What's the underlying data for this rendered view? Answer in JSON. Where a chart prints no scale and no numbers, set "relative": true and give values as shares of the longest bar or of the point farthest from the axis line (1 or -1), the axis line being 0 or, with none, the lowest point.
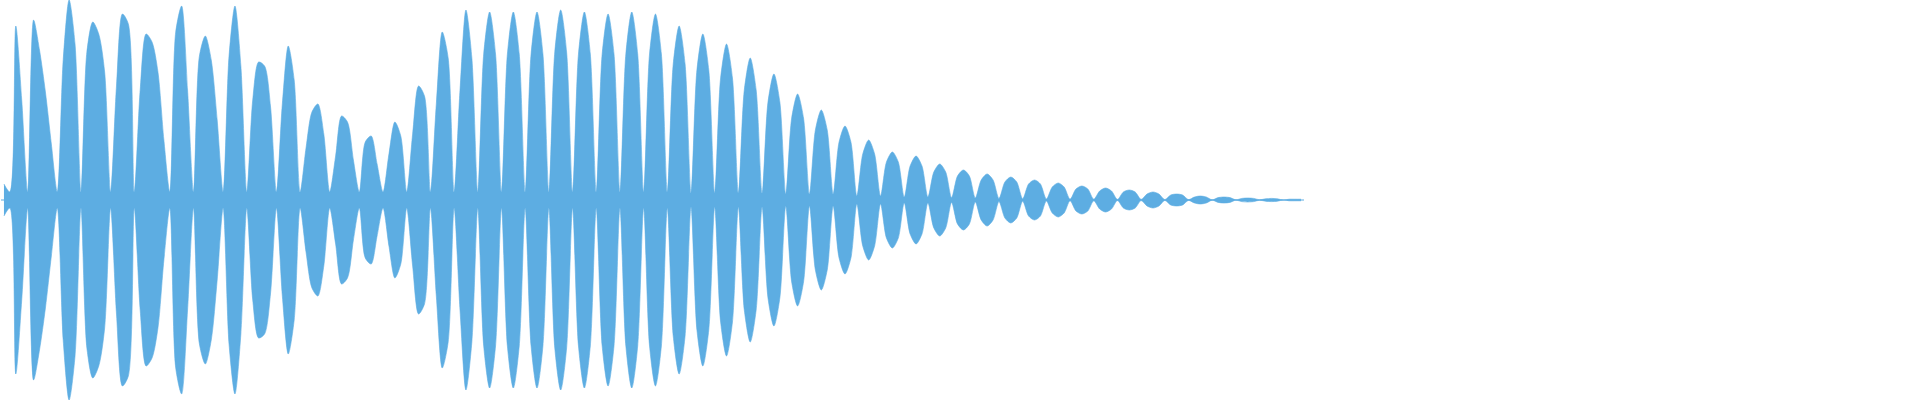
{
  "chart_data": {
    "type": "area",
    "relative": true,
    "categories": [
      null,
      null,
      null,
      null,
      null,
      null,
      null,
      null,
      null,
      null,
      null,
      null,
      null,
      null,
      null,
      null,
      null,
      null,
      null,
      null,
      null,
      null,
      null,
      null,
      null,
      null,
      null,
      null,
      null,
      null,
      null,
      null,
      null,
      null,
      null,
      null,
      null,
      null,
      null,
      null,
      null,
      null,
      null,
      null,
      null,
      null,
      null,
      null,
      null,
      null,
      null,
      null,
      null,
      null,
      null,
      null,
      null,
      null,
      null,
      null,
      null,
      null,
      null,
      null,
      null,
      null,
      null,
      null,
      null,
      null,
      null,
      null,
      null,
      null,
      null,
      null,
      null,
      null,
      null,
      null,
      null,
      null,
      null,
      null,
      null,
      null,
      null,
      null,
      null,
      null,
      null,
      null,
      null,
      null,
      null,
      null,
      null,
      null,
      null,
      null,
      null,
      null,
      null,
      null,
      null,
      null,
      null,
      null,
      null,
      null,
      null,
      null,
      null,
      null,
      null,
      null,
      null,
      null,
      null,
      null,
      null,
      null,
      null,
      null,
      null,
      null,
      null,
      null,
      null,
      null,
      null,
      null,
      null,
      null,
      null,
      null,
      null,
      null,
      null,
      null,
      null,
      null,
      null,
      null,
      null,
      null,
      null,
      null,
      null,
      null,
      null,
      null,
      null,
      null,
      null,
      null,
      null,
      null,
      null,
      null,
      null,
      null,
      null,
      null,
      null,
      null,
      null,
      null,
      null,
      null,
      null,
      null,
      null,
      null,
      null,
      null,
      null,
      null,
      null,
      null,
      null,
      null,
      null,
      null,
      null,
      null,
      null,
      null,
      null,
      null,
      null,
      null,
      null,
      null,
      null,
      null,
      null,
      null,
      null,
      null,
      null,
      null,
      null,
      null,
      null,
      null,
      null,
      null,
      null,
      null,
      null,
      null,
      null,
      null,
      null,
      null,
      null,
      null,
      null,
      null
    ],
    "series": [
      {
        "color": "#5dade2",
        "values": [
          0.08,
          0.04,
          0.87,
          0.5,
          0.04,
          0.9,
          0.75,
          0.54,
          0.28,
          0.04,
          0.7,
          1,
          0.78,
          0.04,
          0.74,
          0.89,
          0.83,
          0.64,
          0.04,
          0.57,
          0.93,
          0.88,
          0.04,
          0.55,
          0.83,
          0.79,
          0.64,
          0.3,
          0.04,
          0.84,
          0.97,
          0.55,
          0.04,
          0.72,
          0.82,
          0.7,
          0.4,
          0.04,
          0.72,
          0.97,
          0.67,
          0.04,
          0.5,
          0.69,
          0.67,
          0.47,
          0.04,
          0.48,
          0.77,
          0.6,
          0.04,
          0.26,
          0.44,
          0.48,
          0.33,
          0.04,
          0.22,
          0.42,
          0.39,
          0.2,
          0.04,
          0.29,
          0.32,
          0.18,
          0.04,
          0.23,
          0.39,
          0.32,
          0.04,
          0.33,
          0.57,
          0.52,
          0.04,
          0.48,
          0.84,
          0.71,
          0.04,
          0.55,
          0.95,
          0.71,
          0.04,
          0.73,
          0.94,
          0.73,
          0.04,
          0.73,
          0.94,
          0.73,
          0.04,
          0.73,
          0.94,
          0.73,
          0.04,
          0.74,
          0.95,
          0.74,
          0.04,
          0.73,
          0.94,
          0.73,
          0.04,
          0.73,
          0.93,
          0.73,
          0.04,
          0.73,
          0.94,
          0.73,
          0.04,
          0.73,
          0.93,
          0.73,
          0.04,
          0.68,
          0.87,
          0.68,
          0.035,
          0.65,
          0.83,
          0.65,
          0.035,
          0.61,
          0.78,
          0.61,
          0.035,
          0.55,
          0.71,
          0.55,
          0.035,
          0.49,
          0.63,
          0.49,
          0.03,
          0.41,
          0.53,
          0.41,
          0.03,
          0.35,
          0.45,
          0.35,
          0.03,
          0.29,
          0.37,
          0.29,
          0.02,
          0.23,
          0.3,
          0.23,
          0.02,
          0.19,
          0.24,
          0.19,
          0.015,
          0.17,
          0.22,
          0.17,
          0.015,
          0.14,
          0.18,
          0.14,
          0.012,
          0.12,
          0.15,
          0.12,
          0.01,
          0.1,
          0.13,
          0.1,
          0.008,
          0.09,
          0.115,
          0.09,
          0.006,
          0.08,
          0.1,
          0.08,
          0.005,
          0.065,
          0.085,
          0.065,
          0.004,
          0.055,
          0.07,
          0.055,
          0.004,
          0.045,
          0.06,
          0.045,
          0.003,
          0.04,
          0.05,
          0.04,
          0.003,
          0.03,
          0.04,
          0.03,
          0.002,
          0.025,
          0.03,
          0.025,
          0.002,
          0.015,
          0.02,
          0.015,
          0.001,
          0.012,
          0.015,
          0.012,
          0.001,
          0.008,
          0.01,
          0.008,
          0.001,
          0.006,
          0.008,
          0.006,
          0,
          0.004,
          0.004,
          0.004
        ]
      },
      {
        "color": "#5dade2",
        "values": [
          -0.08,
          -0.04,
          -0.87,
          -0.5,
          -0.04,
          -0.9,
          -0.75,
          -0.54,
          -0.28,
          -0.04,
          -0.7,
          -1,
          -0.78,
          -0.04,
          -0.74,
          -0.89,
          -0.83,
          -0.64,
          -0.04,
          -0.57,
          -0.93,
          -0.88,
          -0.04,
          -0.55,
          -0.83,
          -0.79,
          -0.64,
          -0.3,
          -0.04,
          -0.84,
          -0.97,
          -0.55,
          -0.04,
          -0.72,
          -0.82,
          -0.7,
          -0.4,
          -0.04,
          -0.72,
          -0.97,
          -0.67,
          -0.04,
          -0.5,
          -0.69,
          -0.67,
          -0.47,
          -0.04,
          -0.48,
          -0.77,
          -0.6,
          -0.04,
          -0.26,
          -0.44,
          -0.48,
          -0.33,
          -0.04,
          -0.22,
          -0.42,
          -0.39,
          -0.2,
          -0.04,
          -0.29,
          -0.32,
          -0.18,
          -0.04,
          -0.23,
          -0.39,
          -0.32,
          -0.04,
          -0.33,
          -0.57,
          -0.52,
          -0.04,
          -0.48,
          -0.84,
          -0.71,
          -0.04,
          -0.55,
          -0.95,
          -0.71,
          -0.04,
          -0.73,
          -0.94,
          -0.73,
          -0.04,
          -0.73,
          -0.94,
          -0.73,
          -0.04,
          -0.73,
          -0.94,
          -0.73,
          -0.04,
          -0.74,
          -0.95,
          -0.74,
          -0.04,
          -0.73,
          -0.94,
          -0.73,
          -0.04,
          -0.73,
          -0.93,
          -0.73,
          -0.04,
          -0.73,
          -0.94,
          -0.73,
          -0.04,
          -0.73,
          -0.93,
          -0.73,
          -0.04,
          -0.68,
          -0.87,
          -0.68,
          -0.035,
          -0.65,
          -0.83,
          -0.65,
          -0.035,
          -0.61,
          -0.78,
          -0.61,
          -0.035,
          -0.55,
          -0.71,
          -0.55,
          -0.035,
          -0.49,
          -0.63,
          -0.49,
          -0.03,
          -0.41,
          -0.53,
          -0.41,
          -0.03,
          -0.35,
          -0.45,
          -0.35,
          -0.03,
          -0.29,
          -0.37,
          -0.29,
          -0.02,
          -0.23,
          -0.3,
          -0.23,
          -0.02,
          -0.19,
          -0.24,
          -0.19,
          -0.015,
          -0.17,
          -0.22,
          -0.17,
          -0.015,
          -0.14,
          -0.18,
          -0.14,
          -0.012,
          -0.12,
          -0.15,
          -0.12,
          -0.01,
          -0.1,
          -0.13,
          -0.1,
          -0.008,
          -0.09,
          -0.115,
          -0.09,
          -0.006,
          -0.08,
          -0.1,
          -0.08,
          -0.005,
          -0.065,
          -0.085,
          -0.065,
          -0.004,
          -0.055,
          -0.07,
          -0.055,
          -0.004,
          -0.045,
          -0.06,
          -0.045,
          -0.003,
          -0.04,
          -0.05,
          -0.04,
          -0.003,
          -0.03,
          -0.04,
          -0.03,
          -0.002,
          -0.025,
          -0.03,
          -0.025,
          -0.002,
          -0.015,
          -0.02,
          -0.015,
          -0.001,
          -0.012,
          -0.015,
          -0.012,
          -0.001,
          -0.008,
          -0.01,
          -0.008,
          -0.001,
          -0.006,
          -0.008,
          -0.006,
          0,
          -0.004,
          -0.004,
          -0.004
        ]
      }
    ],
    "ref_lines": [
      {
        "axis": "y",
        "value": 0,
        "color": "#5dade2"
      }
    ]
  }
}
